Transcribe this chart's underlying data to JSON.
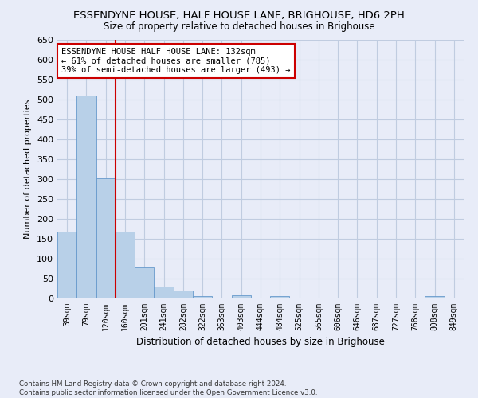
{
  "title": "ESSENDYNE HOUSE, HALF HOUSE LANE, BRIGHOUSE, HD6 2PH",
  "subtitle": "Size of property relative to detached houses in Brighouse",
  "xlabel": "Distribution of detached houses by size in Brighouse",
  "ylabel": "Number of detached properties",
  "bar_labels": [
    "39sqm",
    "79sqm",
    "120sqm",
    "160sqm",
    "201sqm",
    "241sqm",
    "282sqm",
    "322sqm",
    "363sqm",
    "403sqm",
    "444sqm",
    "484sqm",
    "525sqm",
    "565sqm",
    "606sqm",
    "646sqm",
    "687sqm",
    "727sqm",
    "768sqm",
    "808sqm",
    "849sqm"
  ],
  "bar_values": [
    168,
    510,
    302,
    169,
    78,
    31,
    20,
    7,
    0,
    8,
    0,
    6,
    0,
    0,
    0,
    0,
    0,
    0,
    0,
    6,
    0
  ],
  "bar_color": "#b8d0e8",
  "bar_edgecolor": "#6699cc",
  "vline_x": 2.5,
  "vline_color": "#cc0000",
  "ylim": [
    0,
    650
  ],
  "yticks": [
    0,
    50,
    100,
    150,
    200,
    250,
    300,
    350,
    400,
    450,
    500,
    550,
    600,
    650
  ],
  "annotation_text": "ESSENDYNE HOUSE HALF HOUSE LANE: 132sqm\n← 61% of detached houses are smaller (785)\n39% of semi-detached houses are larger (493) →",
  "annotation_box_edgecolor": "#cc0000",
  "annotation_box_facecolor": "#ffffff",
  "footer_line1": "Contains HM Land Registry data © Crown copyright and database right 2024.",
  "footer_line2": "Contains public sector information licensed under the Open Government Licence v3.0.",
  "bg_color": "#e8ecf8",
  "plot_bg_color": "#e8ecf8",
  "grid_color": "#c0cce0"
}
